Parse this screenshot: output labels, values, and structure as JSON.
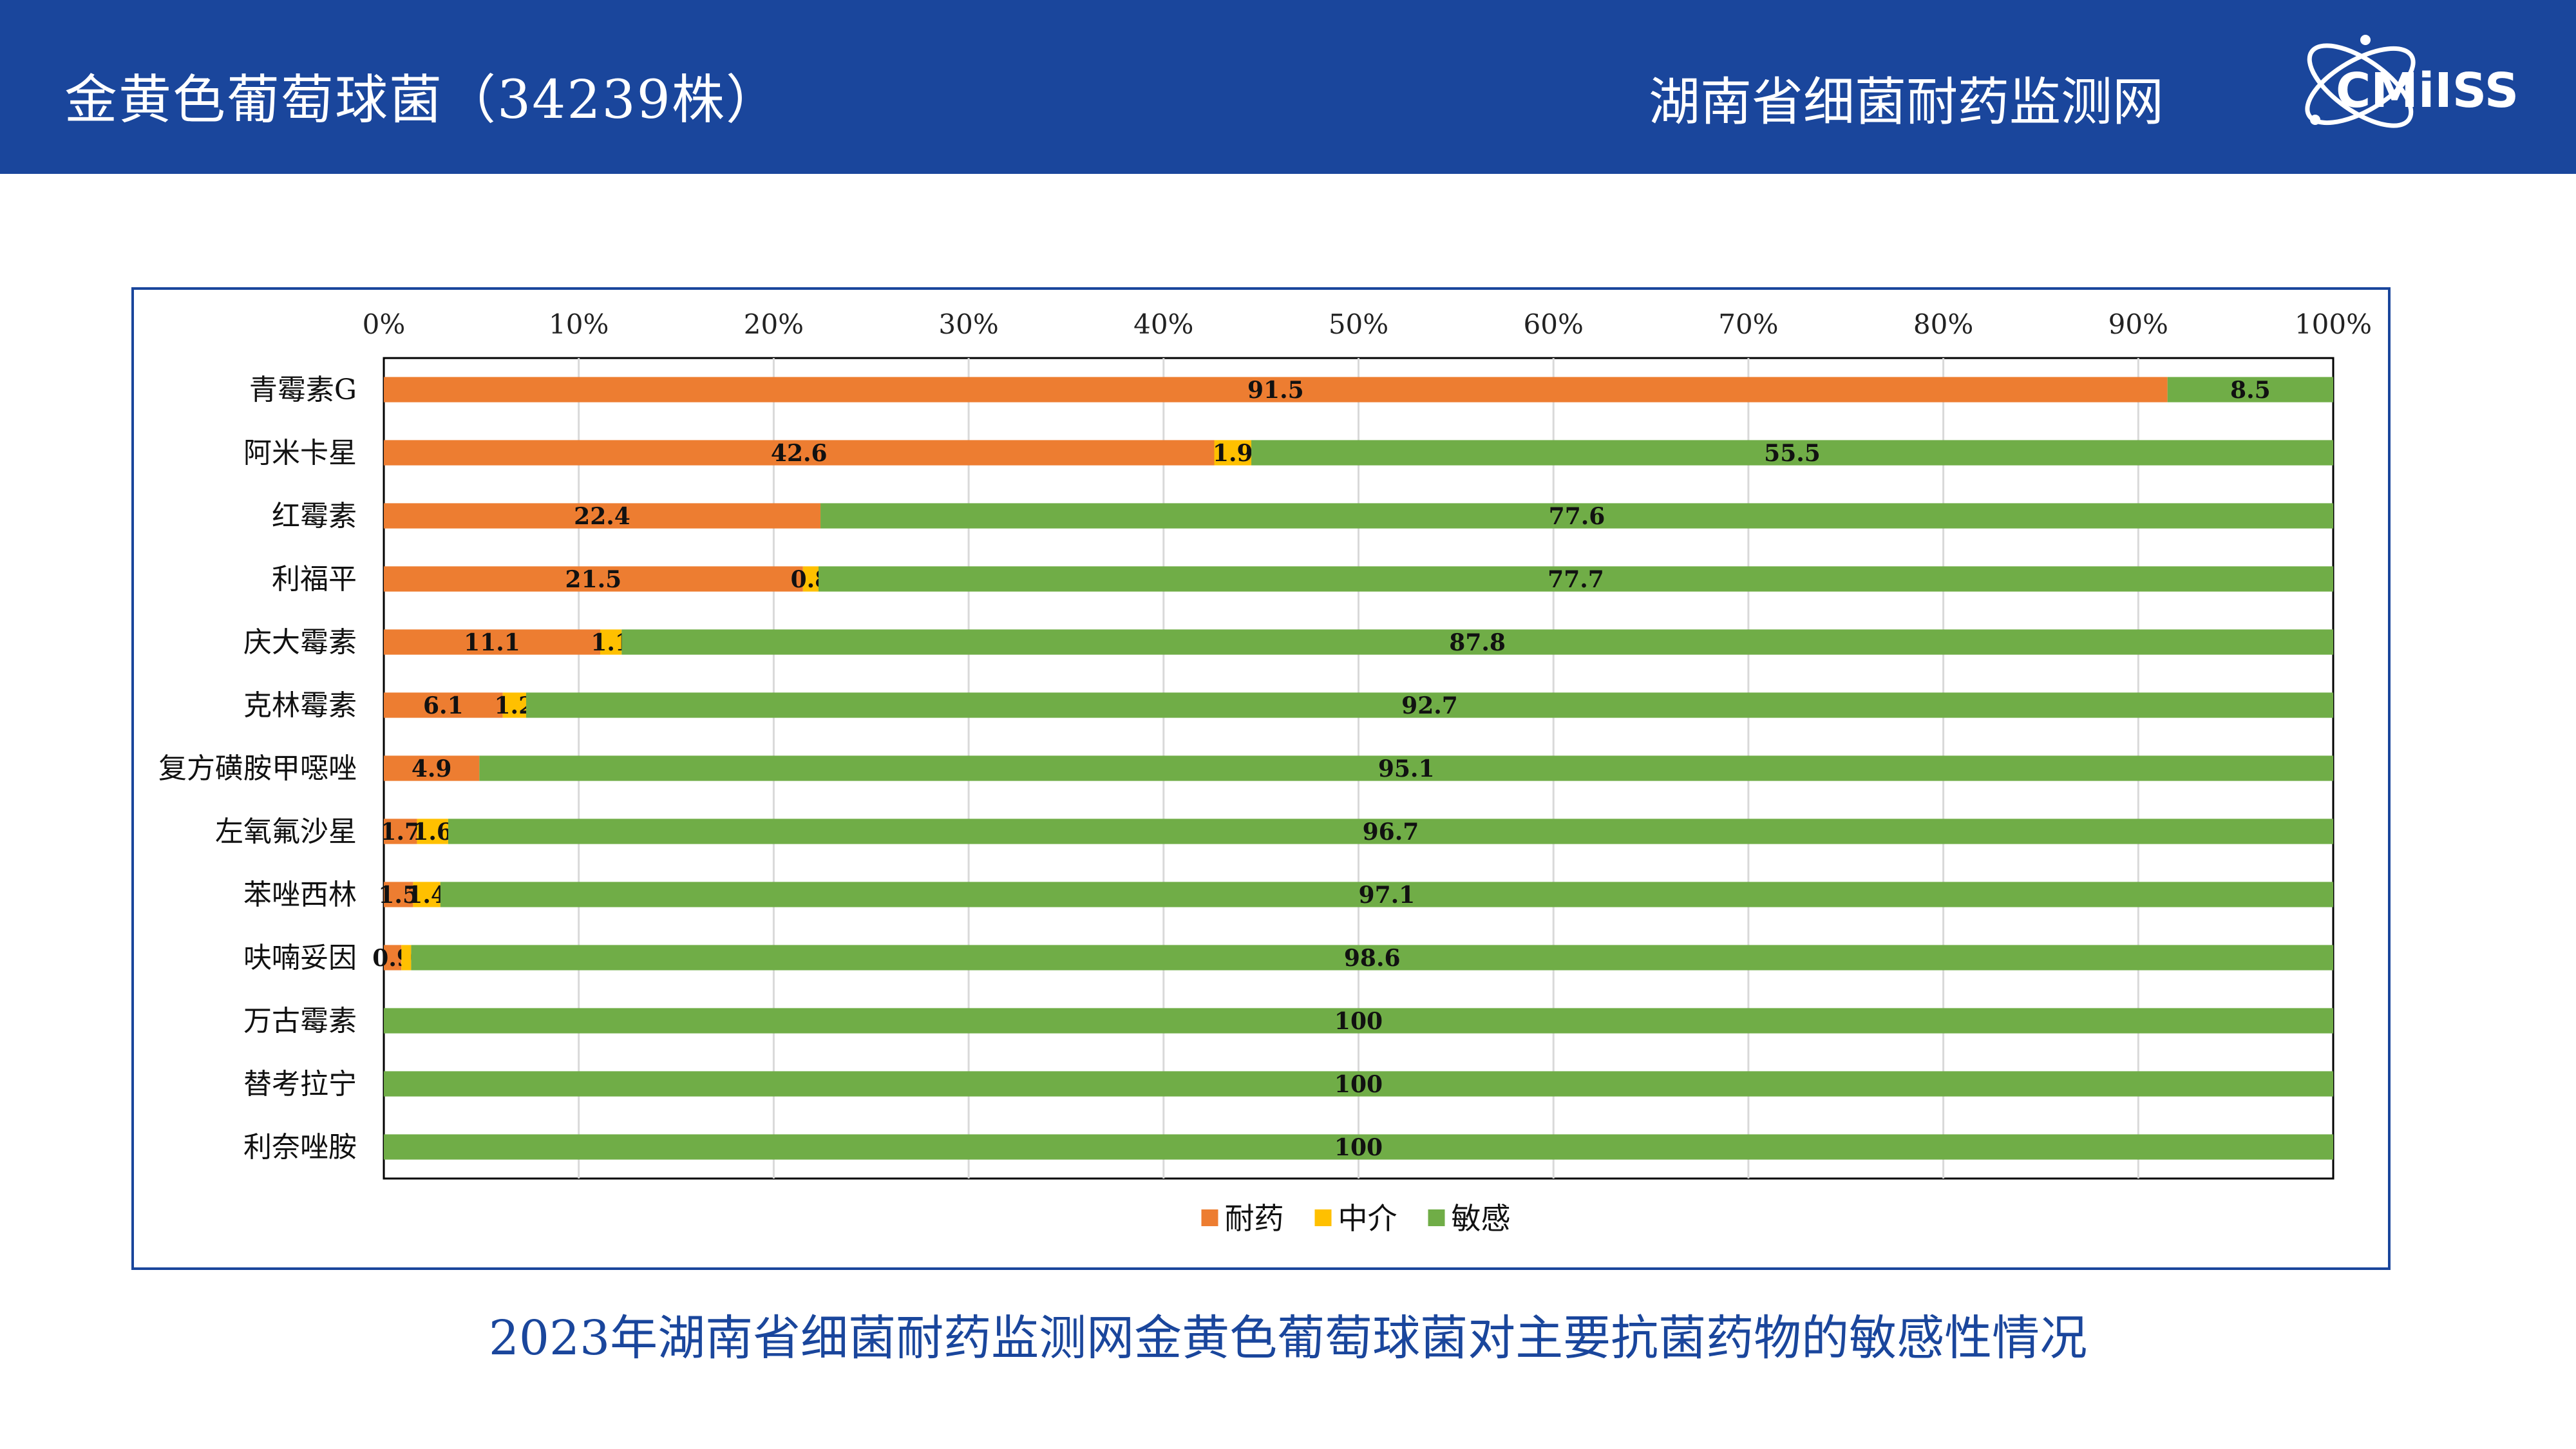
{
  "header": {
    "title": "金黄色葡萄球菌（34239株）",
    "network": "湖南省细菌耐药监测网",
    "logo_text": "CMiISS",
    "color": "#1a469c"
  },
  "caption": "2023年湖南省细菌耐药监测网金黄色葡萄球菌对主要抗菌药物的敏感性情况",
  "chart_data": {
    "type": "bar",
    "orientation": "horizontal",
    "stacked": "percent",
    "xaxis_position": "top",
    "xlim": [
      0,
      100
    ],
    "ticks": [
      "0%",
      "10%",
      "20%",
      "30%",
      "40%",
      "50%",
      "60%",
      "70%",
      "80%",
      "90%",
      "100%"
    ],
    "grid": true,
    "legend_position": "bottom",
    "categories": [
      "青霉素G",
      "阿米卡星",
      "红霉素",
      "利福平",
      "庆大霉素",
      "克林霉素",
      "复方磺胺甲噁唑",
      "左氧氟沙星",
      "苯唑西林",
      "呋喃妥因",
      "万古霉素",
      "替考拉宁",
      "利奈唑胺"
    ],
    "series": [
      {
        "name": "耐药",
        "color": "#ed7d31",
        "values": [
          91.5,
          42.6,
          22.4,
          21.5,
          11.1,
          6.1,
          4.9,
          1.7,
          1.5,
          0.9,
          0,
          0,
          0
        ]
      },
      {
        "name": "中介",
        "color": "#ffc000",
        "values": [
          0,
          1.9,
          0,
          0.8,
          1.1,
          1.2,
          0,
          1.6,
          1.4,
          0.5,
          0,
          0,
          0
        ]
      },
      {
        "name": "敏感",
        "color": "#70ad47",
        "values": [
          8.5,
          55.5,
          77.6,
          77.7,
          87.8,
          92.7,
          95.1,
          96.7,
          97.1,
          98.6,
          100,
          100,
          100
        ]
      }
    ],
    "labels": [
      [
        "91.5",
        "",
        "8.5"
      ],
      [
        "42.6",
        "1.9",
        "55.5"
      ],
      [
        "22.4",
        "",
        "77.6"
      ],
      [
        "21.5",
        "0.8",
        "77.7"
      ],
      [
        "11.1",
        "1.1",
        "87.8"
      ],
      [
        "6.1",
        "1.2",
        "92.7"
      ],
      [
        "4.9",
        "",
        "95.1"
      ],
      [
        "1.7",
        "1.6",
        "96.7"
      ],
      [
        "1.5",
        "1.4",
        "97.1"
      ],
      [
        "0.9",
        "",
        "98.6"
      ],
      [
        "",
        "",
        "100"
      ],
      [
        "",
        "",
        "100"
      ],
      [
        "",
        "",
        "100"
      ]
    ]
  }
}
